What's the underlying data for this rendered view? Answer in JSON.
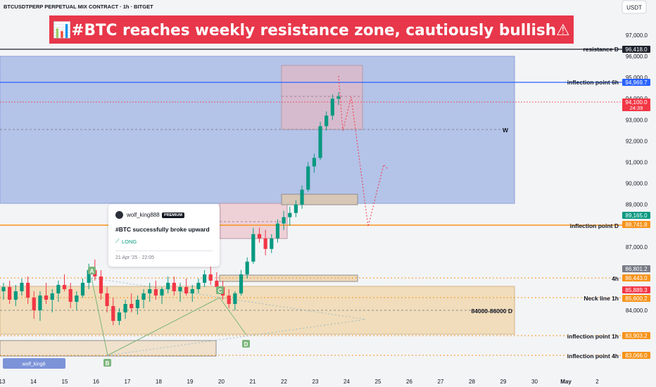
{
  "header": {
    "symbol": "BTCUSDTPERP PERPETUAL MIX CONTRACT · 1h · BITGET",
    "currency": "USDT"
  },
  "banner": {
    "text": "📊#BTC reaches weekly resistance zone, cautiously bullish⚠",
    "bg": "#e8374a"
  },
  "idea_card": {
    "author": "wolf_king888",
    "badge": "PREMIUM",
    "title": "#BTC successfully broke upward",
    "direction": "LONG",
    "date": "21 Apr '25 · 22:05"
  },
  "watermark": "wolf_king8",
  "chart_data": {
    "type": "candlestick",
    "x_ticks": [
      "13",
      "14",
      "15",
      "16",
      "17",
      "18",
      "19",
      "20",
      "21",
      "22",
      "23",
      "24",
      "25",
      "26",
      "27",
      "28",
      "29",
      "30",
      "May",
      "2"
    ],
    "y_ticks": [
      97000,
      96000,
      95000,
      94000,
      93000,
      92000,
      91000,
      90000,
      89000,
      88000,
      87000,
      86000,
      85000,
      84000
    ],
    "ylim": [
      82500,
      97500
    ],
    "colors": {
      "up": "#089981",
      "down": "#f23645"
    },
    "price_tags": [
      {
        "value": 96418.0,
        "text": "96,418.0",
        "bg": "#1e222d"
      },
      {
        "value": 94969.7,
        "text": "94,969.7",
        "bg": "#2962ff"
      },
      {
        "value": 94100.0,
        "text": "94,100.0",
        "sub": "24:39",
        "bg": "#f23645"
      },
      {
        "value": 89165.0,
        "text": "89,165.0",
        "bg": "#089981"
      },
      {
        "value": 88741.8,
        "text": "88,741.8",
        "bg": "#f7931a"
      },
      {
        "value": 86801.2,
        "text": "86,801.2",
        "bg": "#787b86"
      },
      {
        "value": 86443.0,
        "text": "86,443.0",
        "bg": "#f7931a"
      },
      {
        "value": 85889.3,
        "text": "85,889.3",
        "bg": "#f23645"
      },
      {
        "value": 85600.2,
        "text": "85,600.2",
        "bg": "#f7931a"
      },
      {
        "value": 83903.2,
        "text": "83,903.2",
        "bg": "#f7931a"
      },
      {
        "value": 83066.0,
        "text": "83,066.0",
        "bg": "#f7931a"
      }
    ],
    "levels": [
      {
        "label": "resistance D",
        "value": 96418.0,
        "color": "#1e222d",
        "style": "solid"
      },
      {
        "label": "inflection point 6h",
        "value": 94969.7,
        "color": "#2962ff",
        "style": "solid"
      },
      {
        "label": "inflection point D",
        "value": 88741.8,
        "color": "#f7931a",
        "style": "solid"
      },
      {
        "label": "4h",
        "value": 86443.0,
        "color": "#f7931a",
        "style": "dotted"
      },
      {
        "label": "Neck line 1h",
        "value": 85600.2,
        "color": "#f7931a",
        "style": "dotted"
      },
      {
        "label": "inflection point 1h",
        "value": 83903.2,
        "color": "#f7931a",
        "style": "dotted"
      },
      {
        "label": "inflection point 4h",
        "value": 83066.0,
        "color": "#f7931a",
        "style": "dotted"
      }
    ],
    "zones": [
      {
        "label": "W",
        "from": 89800,
        "to": 96000
      },
      {
        "label": "84000-86000 D",
        "from": 84000,
        "to": 86000
      }
    ],
    "pattern_points": [
      "A",
      "B",
      "C",
      "D"
    ],
    "candles": [
      [
        84900,
        85300,
        84500,
        85100
      ],
      [
        85100,
        85400,
        84300,
        84500
      ],
      [
        84500,
        85200,
        84200,
        84900
      ],
      [
        84900,
        85500,
        84700,
        85300
      ],
      [
        85300,
        85600,
        84300,
        84600
      ],
      [
        84600,
        84900,
        83600,
        84000
      ],
      [
        84000,
        84900,
        83500,
        84700
      ],
      [
        84700,
        85300,
        84300,
        84500
      ],
      [
        84500,
        85000,
        83900,
        84800
      ],
      [
        84800,
        85400,
        84400,
        85200
      ],
      [
        85200,
        85700,
        84900,
        85000
      ],
      [
        85000,
        85300,
        84100,
        84400
      ],
      [
        84400,
        84900,
        84000,
        84700
      ],
      [
        84700,
        85500,
        84600,
        85300
      ],
      [
        85300,
        86200,
        85000,
        85900
      ],
      [
        85900,
        86400,
        85400,
        85600
      ],
      [
        85600,
        85900,
        84500,
        84800
      ],
      [
        84800,
        85100,
        83900,
        84200
      ],
      [
        84200,
        84600,
        83300,
        83500
      ],
      [
        83500,
        84100,
        83300,
        83900
      ],
      [
        83900,
        84500,
        83600,
        84300
      ],
      [
        84300,
        84800,
        83900,
        84100
      ],
      [
        84100,
        84700,
        83800,
        84500
      ],
      [
        84500,
        85000,
        84100,
        84800
      ],
      [
        84800,
        85300,
        84400,
        85000
      ],
      [
        85000,
        85400,
        84500,
        84700
      ],
      [
        84700,
        85100,
        84300,
        85000
      ],
      [
        85000,
        85600,
        84800,
        85300
      ],
      [
        85300,
        85600,
        84700,
        84900
      ],
      [
        84900,
        85300,
        84400,
        85100
      ],
      [
        85100,
        85500,
        84700,
        84800
      ],
      [
        84800,
        85200,
        84400,
        85000
      ],
      [
        85000,
        85500,
        84800,
        85300
      ],
      [
        85300,
        85900,
        85100,
        85700
      ],
      [
        85700,
        86100,
        85200,
        85400
      ],
      [
        85400,
        85800,
        84900,
        85100
      ],
      [
        85100,
        85400,
        84500,
        84700
      ],
      [
        84700,
        85000,
        84100,
        84300
      ],
      [
        84300,
        84900,
        84000,
        84800
      ],
      [
        84800,
        85900,
        84700,
        85700
      ],
      [
        85700,
        86500,
        85500,
        86300
      ],
      [
        86300,
        87900,
        86200,
        87600
      ],
      [
        87600,
        87900,
        87200,
        87400
      ],
      [
        87400,
        87800,
        86600,
        86900
      ],
      [
        86900,
        87600,
        86700,
        87400
      ],
      [
        87400,
        88300,
        87200,
        88100
      ],
      [
        88100,
        88700,
        87800,
        88400
      ],
      [
        88400,
        88900,
        88000,
        88600
      ],
      [
        88600,
        89200,
        88400,
        89000
      ],
      [
        89000,
        89900,
        88800,
        89700
      ],
      [
        89700,
        91000,
        89600,
        90800
      ],
      [
        90800,
        91400,
        90500,
        91200
      ],
      [
        91200,
        92900,
        91100,
        92700
      ],
      [
        92700,
        93400,
        92500,
        93200
      ],
      [
        93200,
        94200,
        93000,
        94000
      ],
      [
        94000,
        94300,
        93700,
        94100
      ]
    ]
  }
}
